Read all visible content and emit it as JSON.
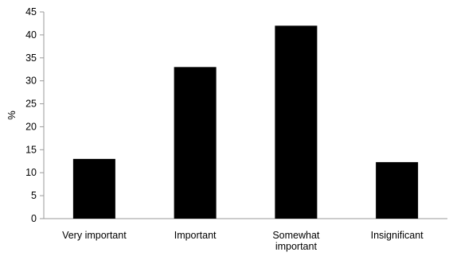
{
  "chart_data": {
    "type": "bar",
    "title": "",
    "xlabel": "",
    "ylabel": "%",
    "ylim": [
      0,
      45
    ],
    "yticks": [
      0,
      5,
      10,
      15,
      20,
      25,
      30,
      35,
      40,
      45
    ],
    "grid": false,
    "legend": "none",
    "categories": [
      [
        "Very important"
      ],
      [
        "Important"
      ],
      [
        "Somewhat",
        "important"
      ],
      [
        "Insignificant"
      ]
    ],
    "values": [
      13,
      33,
      42,
      12.3
    ],
    "colors": {
      "bar": "#000000",
      "axis": "#9a9a9a",
      "background": "#ffffff"
    }
  }
}
